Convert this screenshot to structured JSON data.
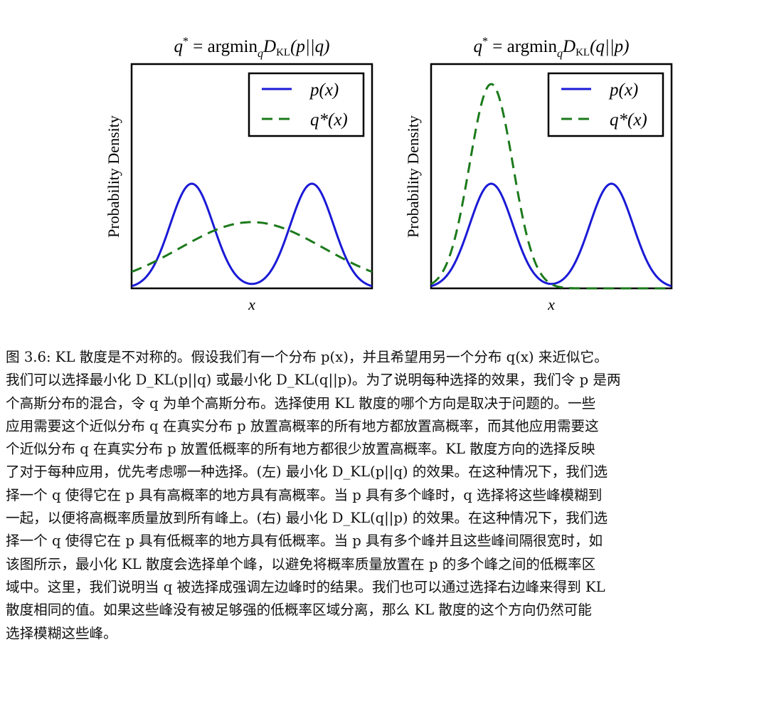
{
  "figure": {
    "panels": [
      {
        "title_parts": {
          "lhs": "q",
          "star": "*",
          "eq": " = argmin",
          "sub_q": "q",
          "D": "D",
          "sub_kl": "KL",
          "args": "(p||q)"
        },
        "legend": {
          "p": "p(x)",
          "q": "q*(x)"
        },
        "ylabel": "Probability Density",
        "xlabel": "x"
      },
      {
        "title_parts": {
          "lhs": "q",
          "star": "*",
          "eq": " = argmin",
          "sub_q": "q",
          "D": "D",
          "sub_kl": "KL",
          "args": "(q||p)"
        },
        "legend": {
          "p": "p(x)",
          "q": "q*(x)"
        },
        "ylabel": "Probability Density",
        "xlabel": "x"
      }
    ],
    "colors": {
      "p": "#1a1ad6",
      "q": "#1b7a1b"
    }
  },
  "chart_data": [
    {
      "type": "line",
      "title": "q* = argmin_q D_KL(p||q)",
      "xlabel": "x",
      "ylabel": "Probability Density",
      "legend_position": "top-right",
      "grid": false,
      "series": [
        {
          "name": "p(x)",
          "style": "solid",
          "shape": "mixture of two equal Gaussians",
          "peak_height_relative": 1.0
        },
        {
          "name": "q*(x)",
          "style": "dashed",
          "shape": "single broad Gaussian centred between the two modes",
          "peak_height_relative": 0.63
        }
      ]
    },
    {
      "type": "line",
      "title": "q* = argmin_q D_KL(q||p)",
      "xlabel": "x",
      "ylabel": "Probability Density",
      "legend_position": "top-right",
      "grid": false,
      "series": [
        {
          "name": "p(x)",
          "style": "solid",
          "shape": "mixture of two equal Gaussians",
          "peak_height_relative": 1.0
        },
        {
          "name": "q*(x)",
          "style": "dashed",
          "shape": "narrow Gaussian on the left mode",
          "peak_height_relative": 1.95
        }
      ]
    }
  ],
  "caption": {
    "lines": [
      "图 3.6: KL 散度是不对称的。假设我们有一个分布 p(x)，并且希望用另一个分布 q(x) 来近似它。",
      "我们可以选择最小化 D_KL(p||q) 或最小化 D_KL(q||p)。为了说明每种选择的效果，我们令 p 是两",
      "个高斯分布的混合，令 q 为单个高斯分布。选择使用 KL 散度的哪个方向是取决于问题的。一些",
      "应用需要这个近似分布 q 在真实分布 p 放置高概率的所有地方都放置高概率，而其他应用需要这",
      "个近似分布 q 在真实分布 p 放置低概率的所有地方都很少放置高概率。KL 散度方向的选择反映",
      "了对于每种应用，优先考虑哪一种选择。(左) 最小化 D_KL(p||q) 的效果。在这种情况下，我们选",
      "择一个 q 使得它在 p 具有高概率的地方具有高概率。当 p 具有多个峰时，q 选择将这些峰模糊到",
      "一起，以便将高概率质量放到所有峰上。(右) 最小化 D_KL(q||p) 的效果。在这种情况下，我们选",
      "择一个 q 使得它在 p 具有低概率的地方具有低概率。当 p 具有多个峰并且这些峰间隔很宽时，如",
      "该图所示，最小化 KL 散度会选择单个峰，以避免将概率质量放置在 p 的多个峰之间的低概率区",
      "域中。这里，我们说明当 q 被选择成强调左边峰时的结果。我们也可以通过选择右边峰来得到 KL",
      "散度相同的值。如果这些峰没有被足够强的低概率区域分离，那么 KL 散度的这个方向仍然可能",
      "选择模糊这些峰。"
    ]
  }
}
